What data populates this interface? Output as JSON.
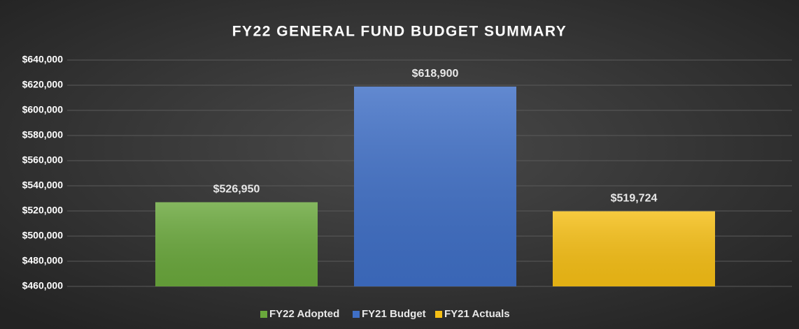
{
  "chart_data": {
    "type": "bar",
    "title": "FY22 GENERAL FUND BUDGET SUMMARY",
    "series": [
      {
        "name": "FY22 Adopted",
        "color": "#6aa83c",
        "values": [
          526950
        ],
        "value_labels": [
          "$526,950"
        ]
      },
      {
        "name": "FY21 Budget",
        "color": "#3f6fc6",
        "values": [
          618900
        ],
        "value_labels": [
          "$618,900"
        ]
      },
      {
        "name": "FY21 Actuals",
        "color": "#f6bf15",
        "values": [
          519724
        ],
        "value_labels": [
          "$519,724"
        ]
      }
    ],
    "ylim": [
      460000,
      640000
    ],
    "yticks": [
      {
        "value": 460000,
        "label": "$460,000"
      },
      {
        "value": 480000,
        "label": "$480,000"
      },
      {
        "value": 500000,
        "label": "$500,000"
      },
      {
        "value": 520000,
        "label": "$520,000"
      },
      {
        "value": 540000,
        "label": "$540,000"
      },
      {
        "value": 560000,
        "label": "$560,000"
      },
      {
        "value": 580000,
        "label": "$580,000"
      },
      {
        "value": 600000,
        "label": "$600,000"
      },
      {
        "value": 620000,
        "label": "$620,000"
      },
      {
        "value": 640000,
        "label": "$640,000"
      }
    ],
    "grid": true,
    "legend": "bottom"
  }
}
